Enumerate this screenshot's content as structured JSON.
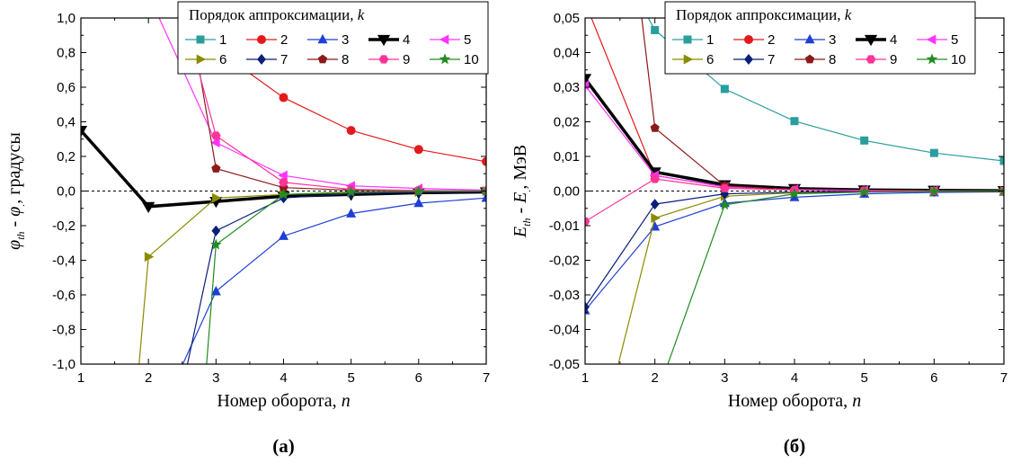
{
  "chart_data": [
    {
      "type": "line",
      "panel_label": "(а)",
      "xlabel": "Номер оборота, n",
      "xlabel_parts": {
        "text": "Номер оборота, ",
        "var": "n"
      },
      "ylabel": "φth - φ., градусы",
      "ylabel_parts": {
        "a": "φ",
        "a_sub": "th",
        "mid": " - ",
        "b": "φ",
        "b_sub": ".",
        "rest": ", градусы"
      },
      "xlim": [
        1,
        7
      ],
      "ylim": [
        -1.0,
        1.0
      ],
      "xticks": [
        "1",
        "2",
        "3",
        "4",
        "5",
        "6",
        "7"
      ],
      "yticks": [
        "-1,0",
        "-0,8",
        "-0,6",
        "-0,4",
        "-0,2",
        "0,0",
        "0,2",
        "0,4",
        "0,6",
        "0,8",
        "1,0"
      ],
      "zero_line": true,
      "legend": {
        "title": "Порядок аппроксимации, ",
        "title_var": "k",
        "placement": "top-right",
        "columns": 5
      },
      "series": [
        {
          "name": "1",
          "color": "#2a9d9d",
          "marker": "square",
          "x": [],
          "y": []
        },
        {
          "name": "2",
          "color": "#e31a1c",
          "marker": "circle",
          "x": [
            2.4,
            3,
            4,
            5,
            6,
            7
          ],
          "y": [
            1.08,
            0.82,
            0.54,
            0.35,
            0.24,
            0.17
          ]
        },
        {
          "name": "3",
          "color": "#1f3fd6",
          "marker": "triangle-up",
          "x": [
            2.45,
            3,
            4,
            5,
            6,
            7
          ],
          "y": [
            -1.05,
            -0.58,
            -0.26,
            -0.13,
            -0.07,
            -0.04
          ]
        },
        {
          "name": "4",
          "color": "#000000",
          "marker": "triangle-down",
          "thick": true,
          "x": [
            1,
            2,
            3,
            4,
            5,
            6,
            7
          ],
          "y": [
            0.35,
            -0.09,
            -0.06,
            -0.03,
            -0.02,
            -0.01,
            -0.005
          ]
        },
        {
          "name": "5",
          "color": "#ff33ff",
          "marker": "triangle-left",
          "x": [
            2.1,
            3,
            4,
            5,
            6,
            7
          ],
          "y": [
            1.05,
            0.28,
            0.09,
            0.03,
            0.015,
            0.005
          ]
        },
        {
          "name": "6",
          "color": "#8b8b00",
          "marker": "triangle-right",
          "x": [
            1.85,
            2,
            3,
            4,
            5,
            6,
            7
          ],
          "y": [
            -1.05,
            -0.38,
            -0.04,
            -0.02,
            -0.01,
            -0.005,
            0.0
          ]
        },
        {
          "name": "7",
          "color": "#0a1e7a",
          "marker": "diamond",
          "x": [
            2.55,
            3,
            4,
            5,
            6,
            7
          ],
          "y": [
            -1.05,
            -0.23,
            -0.04,
            -0.015,
            -0.007,
            -0.003
          ]
        },
        {
          "name": "8",
          "color": "#8b1a1a",
          "marker": "pentagon",
          "x": [
            2.6,
            3,
            4,
            5,
            6,
            7
          ],
          "y": [
            1.05,
            0.13,
            0.02,
            0.005,
            0.002,
            0.001
          ]
        },
        {
          "name": "9",
          "color": "#ff3399",
          "marker": "hexagon",
          "x": [
            2.5,
            3,
            4,
            5,
            6,
            7
          ],
          "y": [
            1.05,
            0.32,
            0.05,
            0.01,
            0.003,
            0.001
          ]
        },
        {
          "name": "10",
          "color": "#228b22",
          "marker": "star",
          "x": [
            2.85,
            3,
            4,
            5,
            6,
            7
          ],
          "y": [
            -1.05,
            -0.31,
            -0.02,
            -0.005,
            -0.002,
            -0.001
          ]
        }
      ]
    },
    {
      "type": "line",
      "panel_label": "(б)",
      "xlabel": "Номер оборота, n",
      "xlabel_parts": {
        "text": "Номер оборота, ",
        "var": "n"
      },
      "ylabel": "Eth - E., МэВ",
      "ylabel_parts": {
        "a": "E",
        "a_sub": "th",
        "mid": " - ",
        "b": "E",
        "b_sub": ".",
        "rest": ", МэВ"
      },
      "xlim": [
        1,
        7
      ],
      "ylim": [
        -0.05,
        0.05
      ],
      "xticks": [
        "1",
        "2",
        "3",
        "4",
        "5",
        "6",
        "7"
      ],
      "yticks": [
        "-0,05",
        "-0,04",
        "-0,03",
        "-0,02",
        "-0,01",
        "0,00",
        "0,01",
        "0,02",
        "0,03",
        "0,04",
        "0,05"
      ],
      "zero_line": true,
      "legend": {
        "title": "Порядок аппроксимации, ",
        "title_var": "k",
        "placement": "top-right",
        "columns": 5
      },
      "series": [
        {
          "name": "1",
          "color": "#2a9d9d",
          "marker": "square",
          "x": [
            1.85,
            2,
            3,
            4,
            5,
            6,
            7
          ],
          "y": [
            0.052,
            0.0465,
            0.0295,
            0.0202,
            0.0146,
            0.011,
            0.0087
          ]
        },
        {
          "name": "2",
          "color": "#e31a1c",
          "marker": "circle",
          "x": [
            1.05,
            2,
            3,
            4,
            5,
            6,
            7
          ],
          "y": [
            0.052,
            0.0045,
            0.0012,
            0.0005,
            0.0002,
            0.0001,
            0.0
          ]
        },
        {
          "name": "3",
          "color": "#1f3fd6",
          "marker": "triangle-up",
          "x": [
            1,
            2,
            3,
            4,
            5,
            6,
            7
          ],
          "y": [
            -0.0345,
            -0.0103,
            -0.0035,
            -0.0018,
            -0.0008,
            -0.0004,
            -0.0002
          ]
        },
        {
          "name": "4",
          "color": "#000000",
          "marker": "triangle-down",
          "thick": true,
          "x": [
            1,
            2,
            3,
            4,
            5,
            6,
            7
          ],
          "y": [
            0.0325,
            0.0055,
            0.0018,
            0.0007,
            0.0003,
            0.0002,
            0.0001
          ]
        },
        {
          "name": "5",
          "color": "#ff33ff",
          "marker": "triangle-left",
          "x": [
            1,
            2,
            3,
            4,
            5,
            6,
            7
          ],
          "y": [
            0.0305,
            0.0045,
            0.0012,
            0.0005,
            0.0002,
            0.0001,
            0.0
          ]
        },
        {
          "name": "6",
          "color": "#8b8b00",
          "marker": "triangle-right",
          "x": [
            1.45,
            2,
            3,
            4,
            5,
            6,
            7
          ],
          "y": [
            -0.052,
            -0.0078,
            -0.0015,
            -0.0005,
            -0.0002,
            -0.0001,
            0.0
          ]
        },
        {
          "name": "7",
          "color": "#0a1e7a",
          "marker": "diamond",
          "x": [
            1,
            2,
            3,
            4,
            5,
            6,
            7
          ],
          "y": [
            -0.0335,
            -0.0038,
            -0.0008,
            -0.0003,
            -0.0001,
            0.0,
            0.0
          ]
        },
        {
          "name": "8",
          "color": "#8b1a1a",
          "marker": "pentagon",
          "x": [
            1.8,
            2,
            3,
            4,
            5,
            6,
            7
          ],
          "y": [
            0.052,
            0.0182,
            0.0015,
            0.0004,
            0.0001,
            0.0,
            0.0
          ]
        },
        {
          "name": "9",
          "color": "#ff3399",
          "marker": "hexagon",
          "x": [
            1,
            2,
            3,
            4,
            5,
            6,
            7
          ],
          "y": [
            -0.0088,
            0.0035,
            0.0008,
            0.0003,
            0.0001,
            0.0,
            0.0
          ]
        },
        {
          "name": "10",
          "color": "#228b22",
          "marker": "star",
          "x": [
            2.15,
            3,
            4,
            5,
            6,
            7
          ],
          "y": [
            -0.052,
            -0.004,
            -0.0008,
            -0.0003,
            -0.0001,
            0.0
          ]
        }
      ]
    }
  ]
}
